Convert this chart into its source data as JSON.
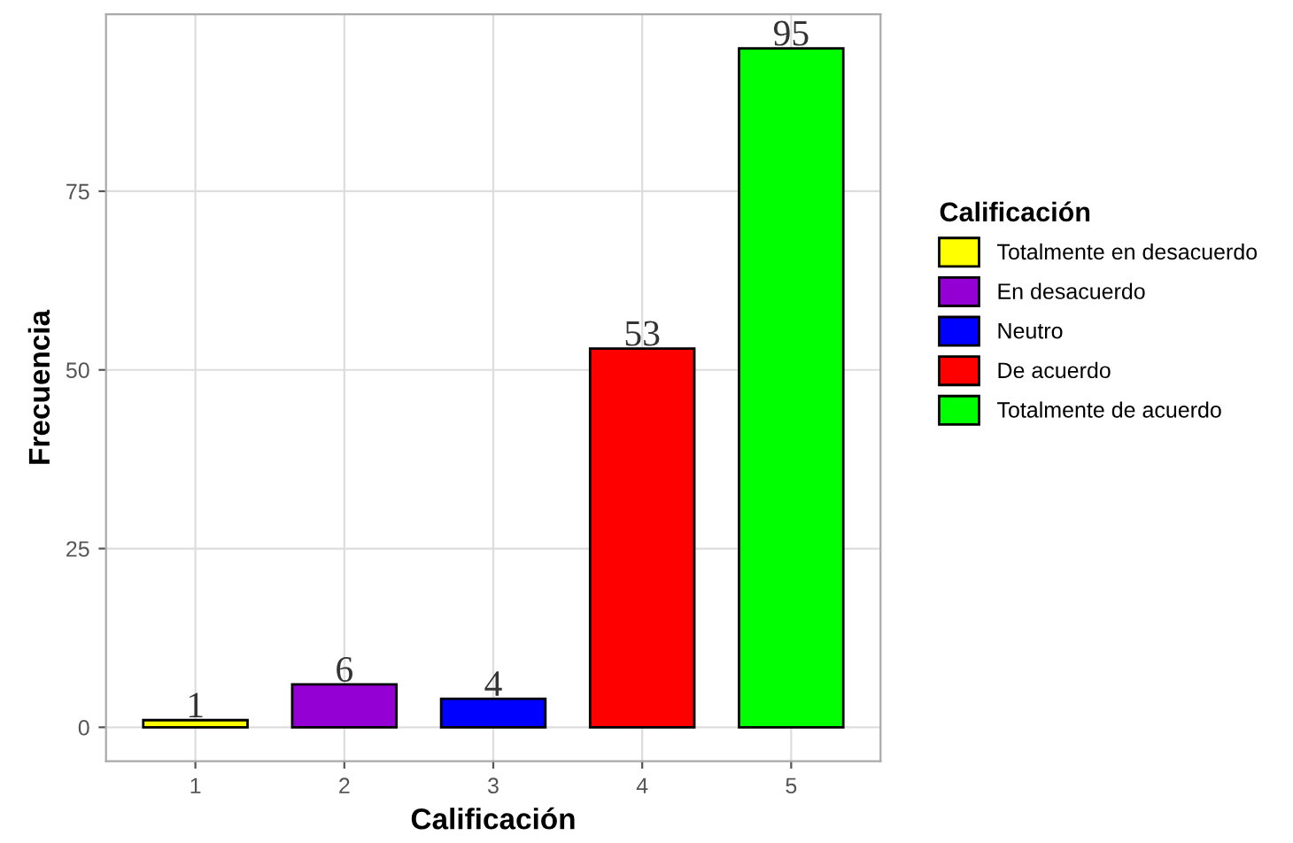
{
  "chart_data": {
    "type": "bar",
    "xlabel": "Calificación",
    "ylabel": "Frecuencia",
    "legend_title": "Calificación",
    "categories": [
      "1",
      "2",
      "3",
      "4",
      "5"
    ],
    "series": [
      {
        "name": "Totalmente en desacuerdo",
        "color": "#ffff00",
        "values": [
          1,
          null,
          null,
          null,
          null
        ]
      },
      {
        "name": "En desacuerdo",
        "color": "#9400d3",
        "values": [
          null,
          6,
          null,
          null,
          null
        ]
      },
      {
        "name": "Neutro",
        "color": "#0000ff",
        "values": [
          null,
          null,
          4,
          null,
          null
        ]
      },
      {
        "name": "De acuerdo",
        "color": "#ff0000",
        "values": [
          null,
          null,
          null,
          53,
          null
        ]
      },
      {
        "name": "Totalmente de acuerdo",
        "color": "#00ff00",
        "values": [
          null,
          null,
          null,
          null,
          95
        ]
      }
    ],
    "ylim": [
      -4.75,
      99.75
    ],
    "yticks": [
      0,
      25,
      50,
      75
    ],
    "grid": true,
    "legend": "right",
    "data_labels": true
  }
}
